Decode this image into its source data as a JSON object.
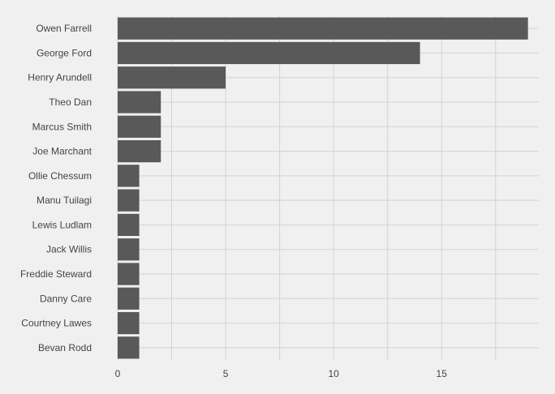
{
  "chart_data": {
    "type": "bar",
    "orientation": "horizontal",
    "categories": [
      "Owen Farrell",
      "George Ford",
      "Henry Arundell",
      "Theo Dan",
      "Marcus Smith",
      "Joe Marchant",
      "Ollie Chessum",
      "Manu Tuilagi",
      "Lewis Ludlam",
      "Jack Willis",
      "Freddie Steward",
      "Danny Care",
      "Courtney Lawes",
      "Bevan Rodd"
    ],
    "values": [
      19,
      14,
      5,
      2,
      2,
      2,
      1,
      1,
      1,
      1,
      1,
      1,
      1,
      1
    ],
    "xticks": [
      0,
      5,
      10,
      15
    ],
    "xlim": [
      0,
      19.5
    ],
    "title": "",
    "xlabel": "",
    "ylabel": "",
    "grid": true,
    "legend": "none",
    "colors": {
      "background": "#f0f0f0",
      "bar": "#595959",
      "grid": "#d2d2d2",
      "text": "#444444"
    }
  }
}
